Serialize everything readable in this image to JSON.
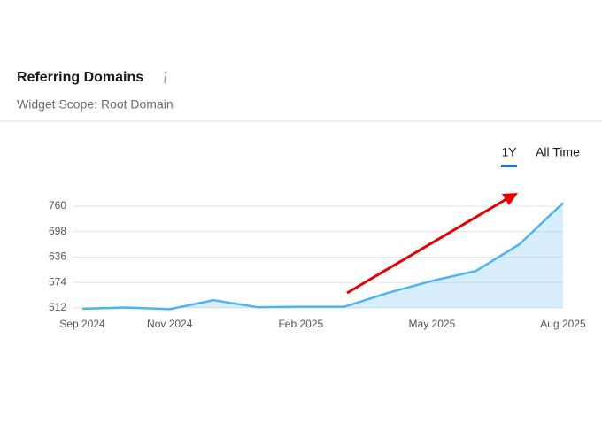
{
  "widget": {
    "title": "Referring Domains",
    "subtitle": "Widget Scope: Root Domain",
    "tabs": [
      "1Y",
      "All Time"
    ]
  },
  "chart_data": {
    "type": "area",
    "categories": [
      "Sep 2024",
      null,
      "Nov 2024",
      null,
      null,
      "Feb 2025",
      null,
      null,
      "May 2025",
      null,
      null,
      "Aug 2025"
    ],
    "series": [
      {
        "name": "Referring Domains",
        "color": "#4db3f5",
        "values": [
          510,
          513,
          509,
          531,
          514,
          515,
          515,
          549,
          578,
          602,
          667,
          768
        ]
      }
    ],
    "ylim": [
      512,
      760
    ],
    "yticks": [
      512,
      574,
      636,
      698,
      760
    ],
    "grid": true
  }
}
